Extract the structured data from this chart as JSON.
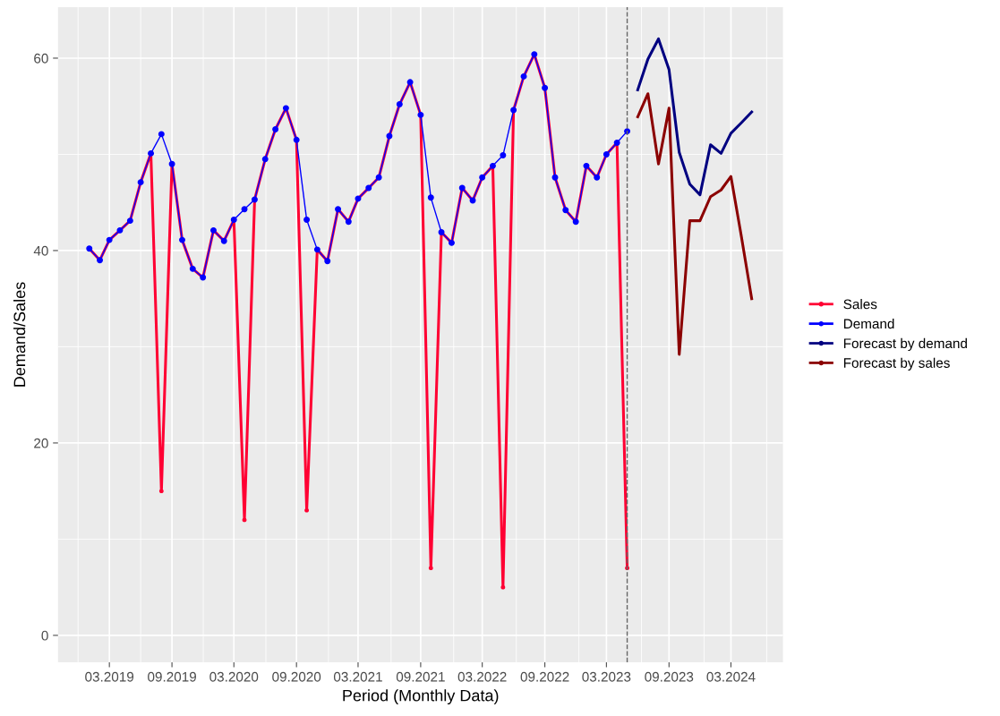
{
  "chart_data": {
    "type": "line",
    "xlabel": "Period (Monthly Data)",
    "ylabel": "Demand/Sales",
    "xlim": [
      "2018-10",
      "2024-08"
    ],
    "ylim": [
      -2.8,
      65.3
    ],
    "yticks": [
      0,
      20,
      40,
      60
    ],
    "xticks": [
      {
        "value": "2019-03",
        "label": "03.2019"
      },
      {
        "value": "2019-09",
        "label": "09.2019"
      },
      {
        "value": "2020-03",
        "label": "03.2020"
      },
      {
        "value": "2020-09",
        "label": "09.2020"
      },
      {
        "value": "2021-03",
        "label": "03.2021"
      },
      {
        "value": "2021-09",
        "label": "09.2021"
      },
      {
        "value": "2022-03",
        "label": "03.2022"
      },
      {
        "value": "2022-09",
        "label": "09.2022"
      },
      {
        "value": "2023-03",
        "label": "03.2023"
      },
      {
        "value": "2023-09",
        "label": "09.2023"
      },
      {
        "value": "2024-03",
        "label": "03.2024"
      }
    ],
    "grid": true,
    "legend": "right",
    "ref_lines": [
      {
        "axis": "x",
        "value": "2023-05",
        "color": "#666666",
        "line_style": "dashed"
      }
    ],
    "series": [
      {
        "name": "Sales",
        "color": "#ff0033",
        "marker": "circle",
        "x": [
          "2019-01",
          "2019-02",
          "2019-03",
          "2019-04",
          "2019-05",
          "2019-06",
          "2019-07",
          "2019-08",
          "2019-09",
          "2019-10",
          "2019-11",
          "2019-12",
          "2020-01",
          "2020-02",
          "2020-03",
          "2020-04",
          "2020-05",
          "2020-06",
          "2020-07",
          "2020-08",
          "2020-09",
          "2020-10",
          "2020-11",
          "2020-12",
          "2021-01",
          "2021-02",
          "2021-03",
          "2021-04",
          "2021-05",
          "2021-06",
          "2021-07",
          "2021-08",
          "2021-09",
          "2021-10",
          "2021-11",
          "2021-12",
          "2022-01",
          "2022-02",
          "2022-03",
          "2022-04",
          "2022-05",
          "2022-06",
          "2022-07",
          "2022-08",
          "2022-09",
          "2022-10",
          "2022-11",
          "2022-12",
          "2023-01",
          "2023-02",
          "2023-03",
          "2023-04",
          "2023-05"
        ],
        "values": [
          40.2,
          39.0,
          41.1,
          42.1,
          43.1,
          47.1,
          50.1,
          15.0,
          49.0,
          41.1,
          38.1,
          37.2,
          42.1,
          41.0,
          43.2,
          12.0,
          45.3,
          49.5,
          52.6,
          54.8,
          51.5,
          13.0,
          40.1,
          38.9,
          44.3,
          43.0,
          45.4,
          46.5,
          47.6,
          51.9,
          55.2,
          57.5,
          54.1,
          7.0,
          41.9,
          40.8,
          46.5,
          45.2,
          47.6,
          48.8,
          5.0,
          54.6,
          58.1,
          60.4,
          56.9,
          47.6,
          44.2,
          43.0,
          48.8,
          47.6,
          50.0,
          51.2,
          7.0
        ]
      },
      {
        "name": "Demand",
        "color": "#0000ff",
        "marker": "circle",
        "x": [
          "2019-01",
          "2019-02",
          "2019-03",
          "2019-04",
          "2019-05",
          "2019-06",
          "2019-07",
          "2019-08",
          "2019-09",
          "2019-10",
          "2019-11",
          "2019-12",
          "2020-01",
          "2020-02",
          "2020-03",
          "2020-04",
          "2020-05",
          "2020-06",
          "2020-07",
          "2020-08",
          "2020-09",
          "2020-10",
          "2020-11",
          "2020-12",
          "2021-01",
          "2021-02",
          "2021-03",
          "2021-04",
          "2021-05",
          "2021-06",
          "2021-07",
          "2021-08",
          "2021-09",
          "2021-10",
          "2021-11",
          "2021-12",
          "2022-01",
          "2022-02",
          "2022-03",
          "2022-04",
          "2022-05",
          "2022-06",
          "2022-07",
          "2022-08",
          "2022-09",
          "2022-10",
          "2022-11",
          "2022-12",
          "2023-01",
          "2023-02",
          "2023-03",
          "2023-04",
          "2023-05"
        ],
        "values": [
          40.2,
          39.0,
          41.1,
          42.1,
          43.1,
          47.1,
          50.1,
          52.1,
          49.0,
          41.1,
          38.1,
          37.2,
          42.1,
          41.0,
          43.2,
          44.3,
          45.3,
          49.5,
          52.6,
          54.8,
          51.5,
          43.2,
          40.1,
          38.9,
          44.3,
          43.0,
          45.4,
          46.5,
          47.6,
          51.9,
          55.2,
          57.5,
          54.1,
          45.5,
          41.9,
          40.8,
          46.5,
          45.2,
          47.6,
          48.8,
          49.9,
          54.6,
          58.1,
          60.4,
          56.9,
          47.6,
          44.2,
          43.0,
          48.8,
          47.6,
          50.0,
          51.2,
          52.4
        ]
      },
      {
        "name": "Forecast by demand",
        "color": "#000080",
        "marker": "none",
        "x": [
          "2023-06",
          "2023-07",
          "2023-08",
          "2023-09",
          "2023-10",
          "2023-11",
          "2023-12",
          "2024-01",
          "2024-02",
          "2024-03",
          "2024-04",
          "2024-05"
        ],
        "values": [
          56.7,
          59.9,
          62.0,
          58.8,
          50.2,
          46.9,
          45.8,
          51.0,
          50.1,
          52.2,
          53.3,
          54.4
        ]
      },
      {
        "name": "Forecast by sales",
        "color": "#8b0000",
        "marker": "none",
        "x": [
          "2023-06",
          "2023-07",
          "2023-08",
          "2023-09",
          "2023-10",
          "2023-11",
          "2023-12",
          "2024-01",
          "2024-02",
          "2024-03",
          "2024-04",
          "2024-05"
        ],
        "values": [
          53.9,
          56.3,
          49.0,
          54.8,
          29.2,
          43.1,
          43.1,
          45.6,
          46.3,
          47.7,
          41.4,
          35.0
        ]
      }
    ]
  }
}
